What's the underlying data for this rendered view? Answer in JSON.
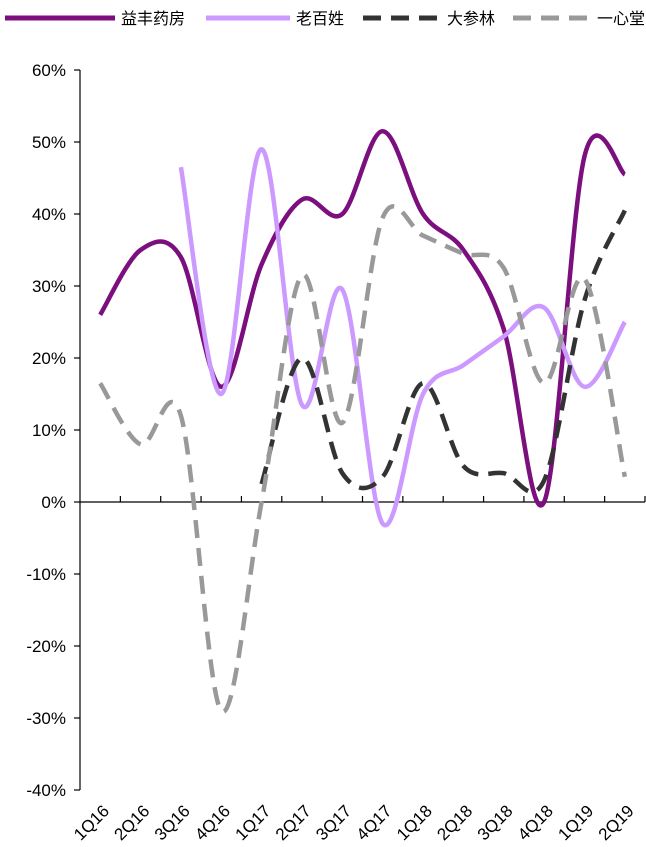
{
  "chart_data": {
    "type": "line",
    "title": "",
    "xlabel": "",
    "ylabel": "",
    "categories": [
      "1Q16",
      "2Q16",
      "3Q16",
      "4Q16",
      "1Q17",
      "2Q17",
      "3Q17",
      "4Q17",
      "1Q18",
      "2Q18",
      "3Q18",
      "4Q18",
      "1Q19",
      "2Q19"
    ],
    "ylim": [
      -0.4,
      0.6
    ],
    "y_ticks": [
      -0.4,
      -0.3,
      -0.2,
      -0.1,
      0,
      0.1,
      0.2,
      0.3,
      0.4,
      0.5,
      0.6
    ],
    "y_tick_labels": [
      "-40%",
      "-30%",
      "-20%",
      "-10%",
      "0%",
      "10%",
      "20%",
      "30%",
      "40%",
      "50%",
      "60%"
    ],
    "grid": false,
    "legend_position": "top",
    "series": [
      {
        "name": "益丰药房",
        "color": "#7b0f7e",
        "dash": "solid",
        "values": [
          0.26,
          0.35,
          0.34,
          0.16,
          0.33,
          0.42,
          0.4,
          0.515,
          0.4,
          0.35,
          0.24,
          0.0,
          0.48,
          0.455
        ]
      },
      {
        "name": "老百姓",
        "color": "#cc99ff",
        "dash": "solid",
        "values": [
          null,
          null,
          0.465,
          0.15,
          0.49,
          0.135,
          0.295,
          -0.03,
          0.15,
          0.19,
          0.23,
          0.27,
          0.16,
          0.25
        ]
      },
      {
        "name": "大参林",
        "color": "#333333",
        "dash": "dash",
        "values": [
          null,
          null,
          null,
          null,
          0.025,
          0.2,
          0.04,
          0.035,
          0.165,
          0.05,
          0.04,
          0.03,
          0.28,
          0.405
        ]
      },
      {
        "name": "一心堂",
        "color": "#999999",
        "dash": "dash",
        "values": [
          0.165,
          0.08,
          0.12,
          -0.29,
          0.0,
          0.315,
          0.11,
          0.395,
          0.37,
          0.345,
          0.325,
          0.165,
          0.31,
          0.035
        ]
      }
    ]
  }
}
